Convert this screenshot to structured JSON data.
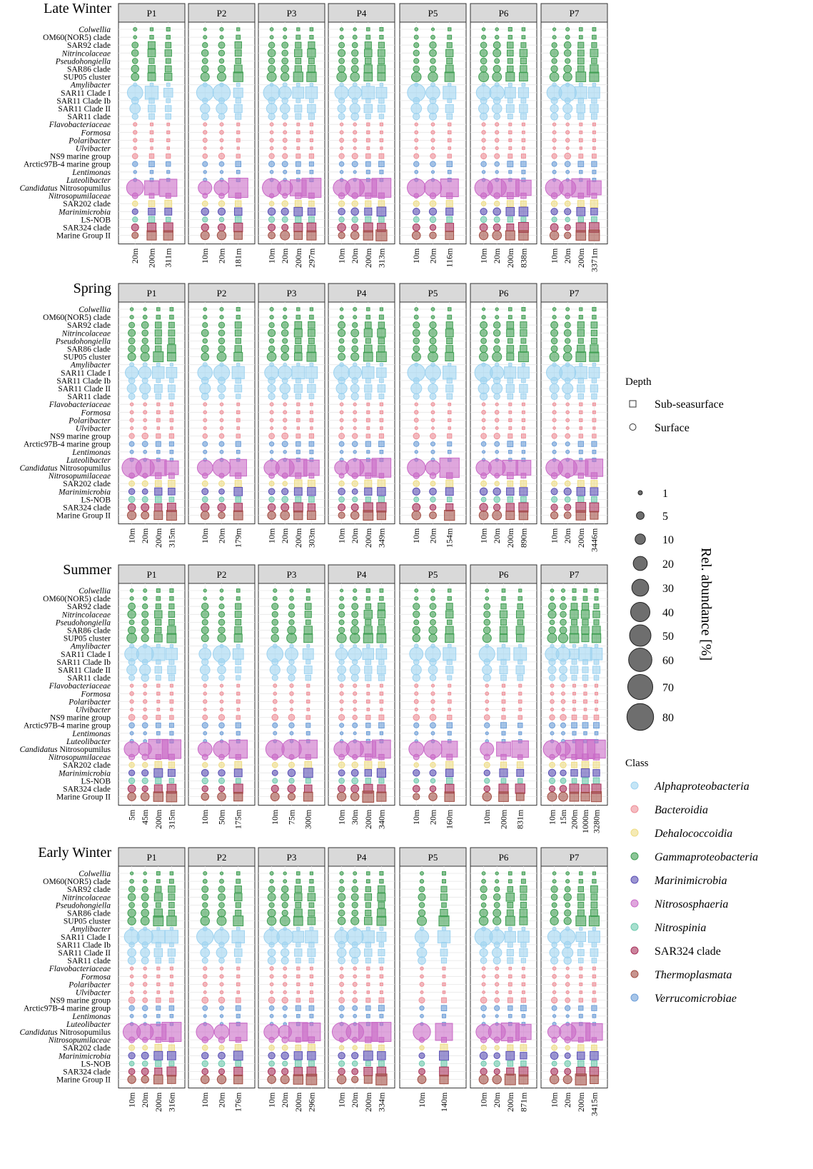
{
  "chart_data": {
    "type": "bubble-matrix",
    "stations": [
      "P1",
      "P2",
      "P3",
      "P4",
      "P5",
      "P6",
      "P7"
    ],
    "taxa": [
      {
        "name": "Colwellia",
        "prefix": "",
        "italic": "Colwellia",
        "class": "Gammaproteobacteria"
      },
      {
        "name": "OM60(NOR5) clade",
        "prefix": "OM60(NOR5) clade",
        "italic": "",
        "class": "Gammaproteobacteria"
      },
      {
        "name": "SAR92 clade",
        "prefix": "SAR92 clade",
        "italic": "",
        "class": "Gammaproteobacteria"
      },
      {
        "name": "Nitrincolaceae",
        "prefix": "",
        "italic": "Nitrincolaceae",
        "class": "Gammaproteobacteria"
      },
      {
        "name": "Pseudohongiella",
        "prefix": "",
        "italic": "Pseudohongiella",
        "class": "Gammaproteobacteria"
      },
      {
        "name": "SAR86 clade",
        "prefix": "SAR86 clade",
        "italic": "",
        "class": "Gammaproteobacteria"
      },
      {
        "name": "SUP05 cluster",
        "prefix": "SUP05 cluster",
        "italic": "",
        "class": "Gammaproteobacteria"
      },
      {
        "name": "Amylibacter",
        "prefix": "",
        "italic": "Amylibacter",
        "class": "Alphaproteobacteria"
      },
      {
        "name": "SAR11 Clade I",
        "prefix": "SAR11 Clade I",
        "italic": "",
        "class": "Alphaproteobacteria"
      },
      {
        "name": "SAR11 Clade Ib",
        "prefix": "SAR11 Clade Ib",
        "italic": "",
        "class": "Alphaproteobacteria"
      },
      {
        "name": "SAR11 Clade II",
        "prefix": "SAR11 Clade II",
        "italic": "",
        "class": "Alphaproteobacteria"
      },
      {
        "name": "SAR11 clade",
        "prefix": "SAR11 clade",
        "italic": "",
        "class": "Alphaproteobacteria"
      },
      {
        "name": "Flavobacteriaceae",
        "prefix": "",
        "italic": "Flavobacteriaceae",
        "class": "Bacteroidia"
      },
      {
        "name": "Formosa",
        "prefix": "",
        "italic": "Formosa",
        "class": "Bacteroidia"
      },
      {
        "name": "Polaribacter",
        "prefix": "",
        "italic": "Polaribacter",
        "class": "Bacteroidia"
      },
      {
        "name": "Ulvibacter",
        "prefix": "",
        "italic": "Ulvibacter",
        "class": "Bacteroidia"
      },
      {
        "name": "NS9 marine group",
        "prefix": "NS9 marine group",
        "italic": "",
        "class": "Bacteroidia"
      },
      {
        "name": "Arctic97B-4 marine group",
        "prefix": "Arctic97B-4 marine group",
        "italic": "",
        "class": "Verrucomicrobiae"
      },
      {
        "name": "Lentimonas",
        "prefix": "",
        "italic": "Lentimonas",
        "class": "Verrucomicrobiae"
      },
      {
        "name": "Luteolibacter",
        "prefix": "",
        "italic": "Luteolibacter",
        "class": "Verrucomicrobiae"
      },
      {
        "name": "Candidatus Nitrosopumilus",
        "prefix": "Candidatus",
        "italic": "",
        "suffix": " Nitrosopumilus",
        "class": "Nitrososphaeria"
      },
      {
        "name": "Nitrosopumilaceae",
        "prefix": "",
        "italic": "Nitrosopumilaceae",
        "class": "Nitrososphaeria"
      },
      {
        "name": "SAR202 clade",
        "prefix": "SAR202 clade",
        "italic": "",
        "class": "Dehalococcoidia"
      },
      {
        "name": "Marinimicrobia",
        "prefix": "",
        "italic": "Marinimicrobia",
        "class": "Marinimicrobia"
      },
      {
        "name": "LS-NOB",
        "prefix": "LS-NOB",
        "italic": "",
        "class": "Nitrospinia"
      },
      {
        "name": "SAR324 clade",
        "prefix": "SAR324 clade",
        "italic": "",
        "class": "SAR324 clade"
      },
      {
        "name": "Marine Group II",
        "prefix": "Marine Group II",
        "italic": "",
        "class": "Thermoplasmata"
      }
    ],
    "seasons": [
      {
        "title": "Late Winter",
        "depths": {
          "P1": [
            "20m",
            "200m",
            "311m"
          ],
          "P2": [
            "10m",
            "20m",
            "181m"
          ],
          "P3": [
            "10m",
            "20m",
            "200m",
            "297m"
          ],
          "P4": [
            "10m",
            "20m",
            "200m",
            "313m"
          ],
          "P5": [
            "10m",
            "20m",
            "116m"
          ],
          "P6": [
            "10m",
            "20m",
            "200m",
            "838m"
          ],
          "P7": [
            "10m",
            "20m",
            "200m",
            "3371m"
          ]
        }
      },
      {
        "title": "Spring",
        "depths": {
          "P1": [
            "10m",
            "20m",
            "200m",
            "315m"
          ],
          "P2": [
            "10m",
            "20m",
            "179m"
          ],
          "P3": [
            "10m",
            "20m",
            "200m",
            "303m"
          ],
          "P4": [
            "10m",
            "20m",
            "200m",
            "349m"
          ],
          "P5": [
            "10m",
            "20m",
            "154m"
          ],
          "P6": [
            "10m",
            "20m",
            "200m",
            "890m"
          ],
          "P7": [
            "10m",
            "20m",
            "200m",
            "3446m"
          ]
        }
      },
      {
        "title": "Summer",
        "depths": {
          "P1": [
            "5m",
            "45m",
            "200m",
            "315m"
          ],
          "P2": [
            "10m",
            "50m",
            "175m"
          ],
          "P3": [
            "10m",
            "75m",
            "300m"
          ],
          "P4": [
            "10m",
            "30m",
            "200m",
            "340m"
          ],
          "P5": [
            "10m",
            "20m",
            "160m"
          ],
          "P6": [
            "10m",
            "200m",
            "831m"
          ],
          "P7": [
            "10m",
            "15m",
            "200m",
            "1000m",
            "3280m"
          ]
        }
      },
      {
        "title": "Early Winter",
        "depths": {
          "P1": [
            "10m",
            "20m",
            "200m",
            "316m"
          ],
          "P2": [
            "10m",
            "20m",
            "176m"
          ],
          "P3": [
            "10m",
            "20m",
            "200m",
            "296m"
          ],
          "P4": [
            "10m",
            "20m",
            "200m",
            "334m"
          ],
          "P5": [
            "10m",
            "140m"
          ],
          "P6": [
            "10m",
            "20m",
            "200m",
            "871m"
          ],
          "P7": [
            "10m",
            "20m",
            "200m",
            "3415m"
          ]
        }
      }
    ],
    "depth_legend": {
      "title": "Depth",
      "items": [
        "Sub-seasurface",
        "Surface"
      ]
    },
    "size_legend": {
      "title": "Rel. abundance [%]",
      "values": [
        1,
        5,
        10,
        20,
        30,
        40,
        50,
        60,
        70,
        80
      ]
    },
    "class_legend": {
      "title": "Class",
      "items": [
        {
          "name": "Alphaproteobacteria",
          "italic": true,
          "color": "#9fd3f0"
        },
        {
          "name": "Bacteroidia",
          "italic": true,
          "color": "#ee8f98"
        },
        {
          "name": "Dehalococcoidia",
          "italic": true,
          "color": "#eedc83"
        },
        {
          "name": "Gammaproteobacteria",
          "italic": true,
          "color": "#3f9e52"
        },
        {
          "name": "Marinimicrobia",
          "italic": true,
          "color": "#5a4fb4"
        },
        {
          "name": "Nitrososphaeria",
          "italic": true,
          "color": "#c96ac7"
        },
        {
          "name": "Nitrospinia",
          "italic": true,
          "color": "#6dc9ad"
        },
        {
          "name": "SAR324 clade",
          "italic": false,
          "color": "#a8325c"
        },
        {
          "name": "Thermoplasmata",
          "italic": true,
          "color": "#a24e44"
        },
        {
          "name": "Verrucomicrobiae",
          "italic": true,
          "color": "#6d9ed8"
        }
      ]
    }
  }
}
